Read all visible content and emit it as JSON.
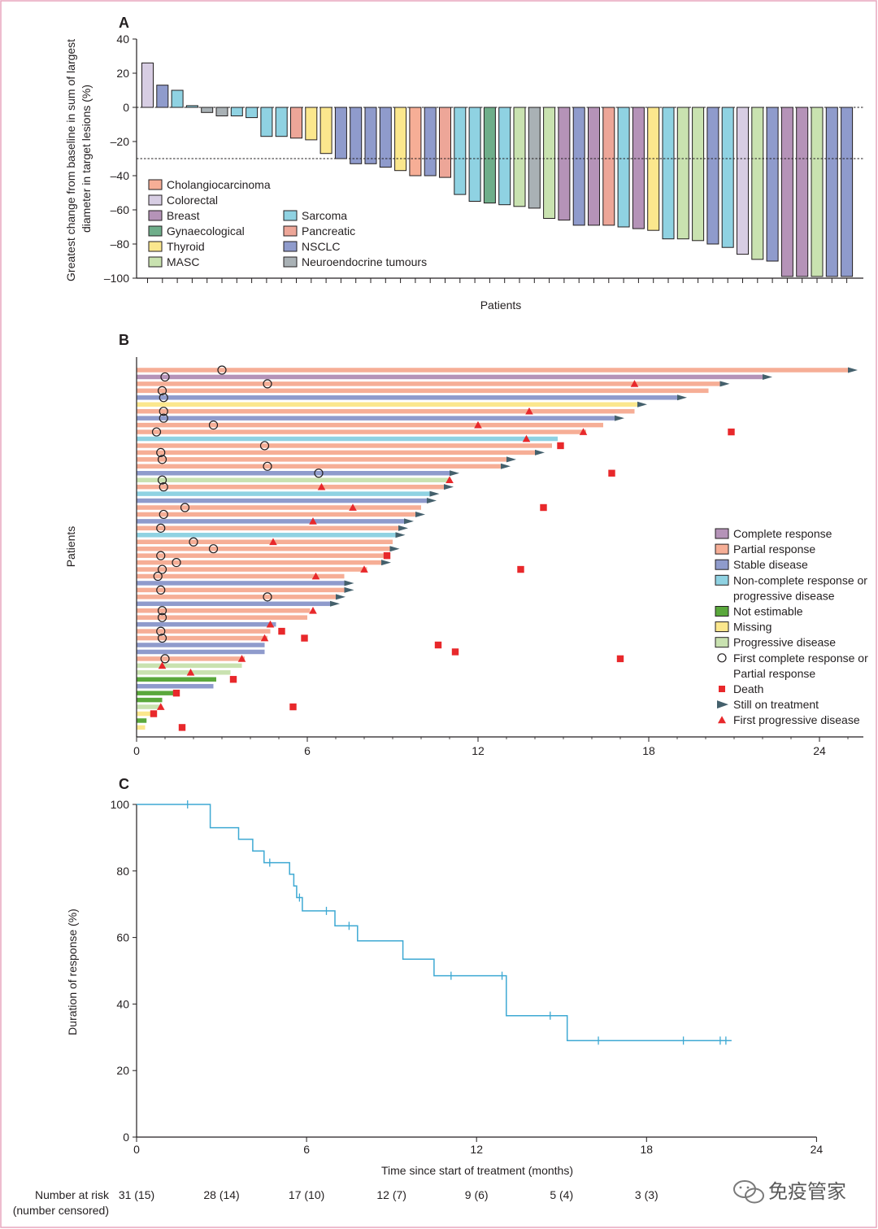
{
  "watermark": "免疫管家",
  "chart_data": [
    {
      "type": "bar",
      "panel": "A",
      "title": "",
      "xlabel": "Patients",
      "ylabel": "Greatest change from baseline in sum of largest diameter in target lesions (%)",
      "ylabel_lines": [
        "Greatest change from baseline in sum of largest",
        "diameter in target lesions (%)"
      ],
      "ylim": [
        -100,
        40
      ],
      "yticks": [
        {
          "v": 40,
          "label": "40"
        },
        {
          "v": 20,
          "label": "20"
        },
        {
          "v": 0,
          "label": "0"
        },
        {
          "v": -20,
          "label": "–20"
        },
        {
          "v": -40,
          "label": "–40"
        },
        {
          "v": -60,
          "label": "–60"
        },
        {
          "v": -80,
          "label": "–80"
        },
        {
          "v": -100,
          "label": "–100"
        }
      ],
      "threshold": -30,
      "legend": [
        {
          "key": "chol",
          "label": "Cholangiocarcinoma",
          "color": "#f6ae96"
        },
        {
          "key": "colo",
          "label": "Colorectal",
          "color": "#d7cde3"
        },
        {
          "key": "breast",
          "label": "Breast",
          "color": "#b593b8"
        },
        {
          "key": "gyn",
          "label": "Gynaecological",
          "color": "#6fae8a"
        },
        {
          "key": "thyroid",
          "label": "Thyroid",
          "color": "#fbe78d"
        },
        {
          "key": "masc",
          "label": "MASC",
          "color": "#c9e2b0"
        },
        {
          "key": "sarcoma",
          "label": "Sarcoma",
          "color": "#8fd2e2"
        },
        {
          "key": "panc",
          "label": "Pancreatic",
          "color": "#eda698"
        },
        {
          "key": "nsclc",
          "label": "NSCLC",
          "color": "#8f9bcc"
        },
        {
          "key": "neuro",
          "label": "Neuroendocrine tumours",
          "color": "#a9b1b5"
        }
      ],
      "bars": [
        {
          "v": 26,
          "t": "colo"
        },
        {
          "v": 13,
          "t": "nsclc"
        },
        {
          "v": 10,
          "t": "sarcoma"
        },
        {
          "v": 1,
          "t": "sarcoma"
        },
        {
          "v": -3,
          "t": "neuro"
        },
        {
          "v": -5,
          "t": "neuro"
        },
        {
          "v": -5,
          "t": "sarcoma"
        },
        {
          "v": -6,
          "t": "sarcoma"
        },
        {
          "v": -17,
          "t": "sarcoma"
        },
        {
          "v": -17,
          "t": "sarcoma"
        },
        {
          "v": -18,
          "t": "panc"
        },
        {
          "v": -19,
          "t": "thyroid"
        },
        {
          "v": -27,
          "t": "thyroid"
        },
        {
          "v": -30,
          "t": "nsclc"
        },
        {
          "v": -33,
          "t": "nsclc"
        },
        {
          "v": -33,
          "t": "nsclc"
        },
        {
          "v": -35,
          "t": "nsclc"
        },
        {
          "v": -37,
          "t": "thyroid"
        },
        {
          "v": -40,
          "t": "chol"
        },
        {
          "v": -40,
          "t": "nsclc"
        },
        {
          "v": -41,
          "t": "panc"
        },
        {
          "v": -51,
          "t": "sarcoma"
        },
        {
          "v": -55,
          "t": "sarcoma"
        },
        {
          "v": -56,
          "t": "gyn"
        },
        {
          "v": -57,
          "t": "sarcoma"
        },
        {
          "v": -58,
          "t": "masc"
        },
        {
          "v": -59,
          "t": "neuro"
        },
        {
          "v": -65,
          "t": "masc"
        },
        {
          "v": -66,
          "t": "breast"
        },
        {
          "v": -69,
          "t": "nsclc"
        },
        {
          "v": -69,
          "t": "breast"
        },
        {
          "v": -69,
          "t": "panc"
        },
        {
          "v": -70,
          "t": "sarcoma"
        },
        {
          "v": -71,
          "t": "breast"
        },
        {
          "v": -72,
          "t": "thyroid"
        },
        {
          "v": -77,
          "t": "sarcoma"
        },
        {
          "v": -77,
          "t": "masc"
        },
        {
          "v": -78,
          "t": "masc"
        },
        {
          "v": -80,
          "t": "nsclc"
        },
        {
          "v": -82,
          "t": "sarcoma"
        },
        {
          "v": -86,
          "t": "colo"
        },
        {
          "v": -89,
          "t": "masc"
        },
        {
          "v": -90,
          "t": "nsclc"
        },
        {
          "v": -99,
          "t": "breast"
        },
        {
          "v": -99,
          "t": "breast"
        },
        {
          "v": -99,
          "t": "masc"
        },
        {
          "v": -99,
          "t": "nsclc"
        },
        {
          "v": -99,
          "t": "nsclc"
        }
      ]
    },
    {
      "type": "swimmer",
      "panel": "B",
      "xlabel": "",
      "ylabel": "Patients",
      "xlim": [
        0,
        24
      ],
      "xticks": [
        {
          "v": 0,
          "label": "0"
        },
        {
          "v": 6,
          "label": "6"
        },
        {
          "v": 12,
          "label": "12"
        },
        {
          "v": 18,
          "label": "18"
        },
        {
          "v": 24,
          "label": "24"
        }
      ],
      "legend": [
        {
          "kind": "box",
          "color": "#b593b8",
          "label": "Complete response"
        },
        {
          "kind": "box",
          "color": "#f6ae96",
          "label": "Partial response"
        },
        {
          "kind": "box",
          "color": "#8f9bcc",
          "label": "Stable disease"
        },
        {
          "kind": "box",
          "color": "#8fd2e2",
          "label": "Non-complete response or",
          "label2": "progressive disease"
        },
        {
          "kind": "box",
          "color": "#5aa83c",
          "label": "Not estimable"
        },
        {
          "kind": "box",
          "color": "#fbe78d",
          "label": "Missing"
        },
        {
          "kind": "box",
          "color": "#c9e2b0",
          "label": "Progressive disease"
        },
        {
          "kind": "circle",
          "color": "#231f20",
          "label": "First complete response or",
          "label2": "Partial response"
        },
        {
          "kind": "square",
          "color": "#e8282b",
          "label": "Death"
        },
        {
          "kind": "arrow",
          "color": "#44606c",
          "label": "Still on treatment"
        },
        {
          "kind": "triangle",
          "color": "#e8282b",
          "label": "First progressive disease"
        }
      ],
      "colors": {
        "cr": "#b593b8",
        "pr": "#f6ae96",
        "sd": "#8f9bcc",
        "nc": "#8fd2e2",
        "ne": "#5aa83c",
        "mi": "#fbe78d",
        "pd": "#c9e2b0"
      },
      "rows": [
        {
          "e": 25.0,
          "c": "pr",
          "a": true,
          "r": 3.0
        },
        {
          "e": 22.0,
          "c": "cr",
          "a": true,
          "r": 1.0
        },
        {
          "e": 20.5,
          "c": "pr",
          "a": true,
          "r": 4.6,
          "p": 17.5
        },
        {
          "e": 20.1,
          "c": "pr",
          "r": 0.9
        },
        {
          "e": 19.0,
          "c": "sd",
          "a": true,
          "r": 0.95
        },
        {
          "e": 17.6,
          "c": "mi",
          "a": true
        },
        {
          "e": 17.5,
          "c": "pr",
          "r": 0.95,
          "p": 13.8
        },
        {
          "e": 16.8,
          "c": "sd",
          "a": true,
          "r": 0.95
        },
        {
          "e": 16.4,
          "c": "pr",
          "r": 2.7,
          "p": 12.0
        },
        {
          "e": 15.8,
          "c": "pr",
          "r": 0.7,
          "p": 15.7,
          "d": 20.9
        },
        {
          "e": 14.8,
          "c": "nc",
          "p": 13.7
        },
        {
          "e": 14.6,
          "c": "pr",
          "r": 4.5,
          "d": 14.9
        },
        {
          "e": 14.0,
          "c": "pr",
          "a": true,
          "r": 0.85
        },
        {
          "e": 13.0,
          "c": "pr",
          "a": true,
          "r": 0.9
        },
        {
          "e": 12.8,
          "c": "pr",
          "a": true,
          "r": 4.6
        },
        {
          "e": 11.0,
          "c": "sd",
          "a": true,
          "r": 6.4,
          "d": 16.7
        },
        {
          "e": 11.0,
          "c": "pd",
          "p": 11.0,
          "r2": 0.9
        },
        {
          "e": 10.8,
          "c": "pr",
          "a": true,
          "r": 0.95,
          "p": 6.5
        },
        {
          "e": 10.3,
          "c": "nc",
          "a": true
        },
        {
          "e": 10.2,
          "c": "sd",
          "a": true
        },
        {
          "e": 10.0,
          "c": "pr",
          "r": 1.7,
          "p": 7.6,
          "d": 14.3
        },
        {
          "e": 9.8,
          "c": "pr",
          "a": true,
          "r": 0.95
        },
        {
          "e": 9.4,
          "c": "sd",
          "a": true,
          "p": 6.2
        },
        {
          "e": 9.2,
          "c": "pr",
          "a": true,
          "r": 0.85
        },
        {
          "e": 9.1,
          "c": "nc",
          "a": true
        },
        {
          "e": 9.0,
          "c": "pr",
          "r": 2.0,
          "p": 4.8
        },
        {
          "e": 8.9,
          "c": "pr",
          "a": true,
          "r": 2.7
        },
        {
          "e": 8.8,
          "c": "pr",
          "r": 0.85,
          "d": 8.8
        },
        {
          "e": 8.6,
          "c": "pr",
          "a": true,
          "r": 1.4
        },
        {
          "e": 8.1,
          "c": "pr",
          "r": 0.9,
          "p": 8.0,
          "d": 13.5
        },
        {
          "e": 7.3,
          "c": "pr",
          "r": 0.75,
          "p": 6.3
        },
        {
          "e": 7.3,
          "c": "sd",
          "a": true
        },
        {
          "e": 7.3,
          "c": "pr",
          "a": true,
          "r": 0.85
        },
        {
          "e": 7.0,
          "c": "pr",
          "a": true,
          "r": 4.6
        },
        {
          "e": 6.8,
          "c": "sd",
          "a": true
        },
        {
          "e": 6.1,
          "c": "pr",
          "r": 0.9,
          "p": 6.2
        },
        {
          "e": 6.0,
          "c": "pr",
          "r": 0.9
        },
        {
          "e": 4.9,
          "c": "sd",
          "p": 4.7
        },
        {
          "e": 4.7,
          "c": "pr",
          "r": 0.85,
          "d": 5.1
        },
        {
          "e": 4.6,
          "c": "pr",
          "r": 0.9,
          "p": 4.5,
          "d": 5.9
        },
        {
          "e": 4.5,
          "c": "sd",
          "d": 10.6
        },
        {
          "e": 4.5,
          "c": "sd",
          "d": 11.2
        },
        {
          "e": 3.8,
          "c": "pr",
          "r": 1.0,
          "p": 3.7,
          "d": 17.0
        },
        {
          "e": 3.7,
          "c": "pd",
          "p": 0.9
        },
        {
          "e": 3.3,
          "c": "pd",
          "p": 1.9
        },
        {
          "e": 2.8,
          "c": "ne",
          "d": 3.4
        },
        {
          "e": 2.7,
          "c": "sd"
        },
        {
          "e": 1.4,
          "c": "ne",
          "d": 1.4
        },
        {
          "e": 0.9,
          "c": "ne"
        },
        {
          "e": 0.9,
          "c": "pd",
          "p": 0.85,
          "d": 5.5
        },
        {
          "e": 0.6,
          "c": "mi",
          "d": 0.6
        },
        {
          "e": 0.35,
          "c": "ne"
        },
        {
          "e": 0.3,
          "c": "mi",
          "d": 1.6
        }
      ]
    },
    {
      "type": "line",
      "panel": "C",
      "xlabel": "Time since start of treatment (months)",
      "ylabel": "Duration of response (%)",
      "xlim": [
        0,
        24
      ],
      "ylim": [
        0,
        100
      ],
      "xticks": [
        {
          "v": 0,
          "label": "0"
        },
        {
          "v": 6,
          "label": "6"
        },
        {
          "v": 12,
          "label": "12"
        },
        {
          "v": 18,
          "label": "18"
        },
        {
          "v": 24,
          "label": "24"
        }
      ],
      "yticks": [
        {
          "v": 0,
          "label": "0"
        },
        {
          "v": 20,
          "label": "20"
        },
        {
          "v": 40,
          "label": "40"
        },
        {
          "v": 60,
          "label": "60"
        },
        {
          "v": 80,
          "label": "80"
        },
        {
          "v": 100,
          "label": "100"
        }
      ],
      "color": "#3ea9d3",
      "steps": [
        [
          0,
          100
        ],
        [
          2.6,
          100
        ],
        [
          2.6,
          93
        ],
        [
          3.6,
          93
        ],
        [
          3.6,
          89.5
        ],
        [
          4.1,
          89.5
        ],
        [
          4.1,
          86
        ],
        [
          4.5,
          86
        ],
        [
          4.5,
          82.5
        ],
        [
          5.4,
          82.5
        ],
        [
          5.4,
          79
        ],
        [
          5.55,
          79
        ],
        [
          5.55,
          75.5
        ],
        [
          5.65,
          75.5
        ],
        [
          5.65,
          72
        ],
        [
          5.85,
          72
        ],
        [
          5.85,
          68
        ],
        [
          7.0,
          68
        ],
        [
          7.0,
          63.5
        ],
        [
          7.8,
          63.5
        ],
        [
          7.8,
          59
        ],
        [
          9.4,
          59
        ],
        [
          9.4,
          53.5
        ],
        [
          10.5,
          53.5
        ],
        [
          10.5,
          48.5
        ],
        [
          13.05,
          48.5
        ],
        [
          13.05,
          36.5
        ],
        [
          15.2,
          36.5
        ],
        [
          15.2,
          29
        ],
        [
          21,
          29
        ]
      ],
      "censored": [
        [
          1.8,
          100
        ],
        [
          4.7,
          82.5
        ],
        [
          5.75,
          72
        ],
        [
          6.7,
          68
        ],
        [
          7.5,
          63.5
        ],
        [
          11.1,
          48.5
        ],
        [
          12.9,
          48.5
        ],
        [
          14.6,
          36.5
        ],
        [
          16.3,
          29
        ],
        [
          19.3,
          29
        ],
        [
          20.6,
          29
        ],
        [
          20.8,
          29
        ]
      ],
      "risk_title": "Number at risk",
      "risk_subtitle": "(number censored)",
      "risk": [
        {
          "t": 0,
          "label": "31 (15)"
        },
        {
          "t": 3,
          "label": "28 (14)"
        },
        {
          "t": 6,
          "label": "17 (10)"
        },
        {
          "t": 9,
          "label": "12 (7)"
        },
        {
          "t": 12,
          "label": "9 (6)"
        },
        {
          "t": 15,
          "label": "5 (4)"
        },
        {
          "t": 18,
          "label": "3 (3)"
        }
      ]
    }
  ]
}
